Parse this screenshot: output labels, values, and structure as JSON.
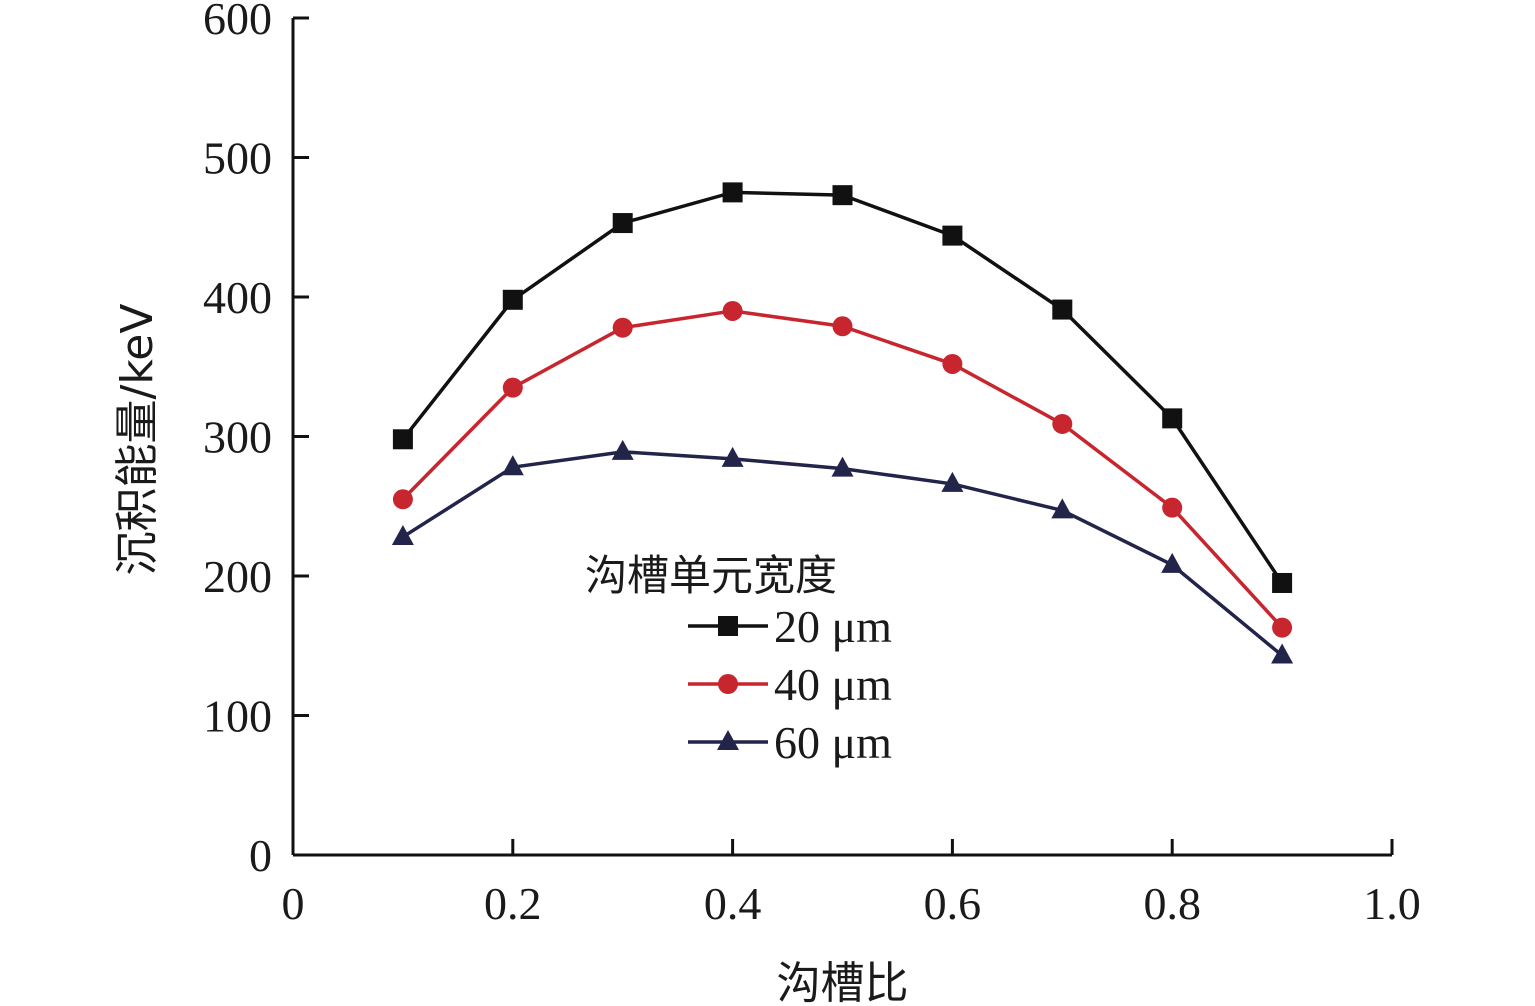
{
  "chart_data": {
    "type": "line",
    "title": "",
    "xlabel": "沟槽比",
    "ylabel": "沉积能量/keV",
    "xlim": [
      0,
      1.0
    ],
    "ylim": [
      0,
      600
    ],
    "x_ticks": [
      0,
      0.2,
      0.4,
      0.6,
      0.8,
      1.0
    ],
    "x_tick_labels": [
      "0",
      "0.2",
      "0.4",
      "0.6",
      "0.8",
      "1.0"
    ],
    "y_ticks": [
      0,
      100,
      200,
      300,
      400,
      500,
      600
    ],
    "y_tick_labels": [
      "0",
      "100",
      "200",
      "300",
      "400",
      "500",
      "600"
    ],
    "grid": false,
    "legend": {
      "title": "沟槽单元宽度",
      "placement": "center"
    },
    "x": [
      0.1,
      0.2,
      0.3,
      0.4,
      0.5,
      0.6,
      0.7,
      0.8,
      0.9
    ],
    "series": [
      {
        "name": "20 μm",
        "color": "#111111",
        "marker": "square",
        "values": [
          298,
          398,
          453,
          475,
          473,
          444,
          391,
          313,
          195
        ]
      },
      {
        "name": "40 μm",
        "color": "#c8262e",
        "marker": "circle",
        "values": [
          255,
          335,
          378,
          390,
          379,
          352,
          309,
          249,
          163
        ]
      },
      {
        "name": "60 μm",
        "color": "#23244a",
        "marker": "triangle",
        "values": [
          228,
          278,
          289,
          284,
          277,
          266,
          247,
          208,
          143
        ]
      }
    ]
  }
}
